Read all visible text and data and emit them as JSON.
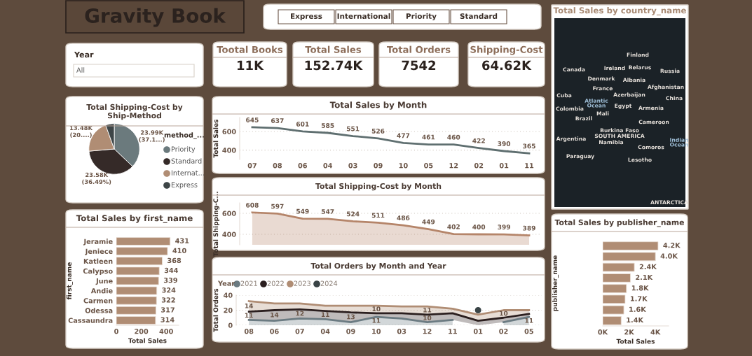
{
  "chart_data": [
    {
      "type": "other",
      "title": "Gravity Book"
    },
    {
      "type": "other",
      "annotations": [
        "Express",
        "International",
        "Priority",
        "Standard"
      ]
    },
    {
      "type": "other",
      "title": "Total Sales by country_name",
      "annotations": [
        "Finland",
        "Canada",
        "Ireland",
        "Belarus",
        "Russia",
        "Denmark",
        "Albania",
        "France",
        "Afghanistan",
        "Cuba",
        "Azerbaijan",
        "China",
        "Atlantic\nOcean",
        "Colombia",
        "Egypt",
        "Armenia",
        "Mali",
        "Brazil",
        "Cameroon",
        "Burkina Faso",
        "SOUTH AMERICA",
        "Argentina",
        "Namibia",
        "Indian\nOcean",
        "Comoros",
        "Paraguay",
        "Lesotho",
        "ANTARCTICA"
      ]
    },
    {
      "type": "other",
      "title": "Year",
      "annotations": [
        "All"
      ]
    },
    {
      "type": "other",
      "title": "Tootal Books",
      "annotations": [
        "11K"
      ]
    },
    {
      "type": "other",
      "title": "Total Sales",
      "annotations": [
        "152.74K"
      ]
    },
    {
      "type": "other",
      "title": "Total Orders",
      "annotations": [
        "7542"
      ]
    },
    {
      "type": "other",
      "title": "Shipping-Cost",
      "annotations": [
        "64.62K"
      ]
    },
    {
      "type": "pie",
      "title": "Total Shipping-Cost by\nShip-Method",
      "legend_title": "method_...",
      "legend": "right",
      "categories": [
        "Priority",
        "Standard",
        "Internat...",
        "Express"
      ],
      "values": [
        23990,
        23580,
        13480,
        3570
      ],
      "colors": [
        "#6b7a7d",
        "#352a28",
        "#b08d74",
        "#3d4547"
      ],
      "value_labels": [
        "23.99K\n(37.1...)",
        "23.58K\n(36.49%)",
        "13.48K\n(20....)",
        null
      ]
    },
    {
      "type": "line",
      "title": "Total Sales by Month",
      "ylabel": "Total Sales",
      "categories": [
        "07",
        "08",
        "06",
        "04",
        "03",
        "09",
        "10",
        "05",
        "12",
        "02",
        "01",
        "11"
      ],
      "values": [
        645,
        637,
        601,
        585,
        551,
        526,
        477,
        461,
        460,
        422,
        390,
        365
      ],
      "color": "#5f6f70",
      "data_labels": true,
      "ylim": [
        300,
        750
      ],
      "yticks": [
        400,
        600
      ],
      "grid": "y",
      "marker": "none"
    },
    {
      "type": "area",
      "title": "Total Shipping-Cost by Month",
      "ylabel": "Total Shipping-C...",
      "categories": [
        null,
        null,
        null,
        null,
        null,
        null,
        null,
        null,
        null,
        null,
        null,
        null
      ],
      "values": [
        608,
        597,
        549,
        547,
        524,
        511,
        486,
        449,
        402,
        400,
        399,
        389
      ],
      "color": "#b5856a",
      "data_labels": true,
      "ylim": [
        300,
        700
      ],
      "yticks": [
        400,
        600
      ],
      "grid": "y"
    },
    {
      "type": "area",
      "stacked": true,
      "title": "Total Orders by Month and Year",
      "ylabel": "Total Orders",
      "legend_title": "Year",
      "legend": "top left",
      "categories": [
        "08",
        "06",
        "07",
        "04",
        "09",
        "10",
        "03",
        "12",
        "11",
        "01",
        "02",
        "05"
      ],
      "series": [
        {
          "name": "2021",
          "color": "#6b7b82",
          "values": [
            7,
            6,
            9,
            8,
            4,
            11,
            9,
            4,
            7,
            null,
            4,
            11
          ],
          "value_labels": [
            null,
            null,
            null,
            null,
            null,
            "11",
            null,
            null,
            null,
            null,
            null,
            "11"
          ]
        },
        {
          "name": "2022",
          "color": "#2b1f1f",
          "values": [
            11,
            14,
            12,
            11,
            13,
            5,
            7,
            10,
            9,
            6,
            6,
            4
          ],
          "value_labels": [
            "11",
            "14",
            "12",
            "11",
            "13",
            null,
            null,
            "10",
            null,
            null,
            null,
            null
          ]
        },
        {
          "name": "2023",
          "color": "#b08d74",
          "values": [
            14,
            9,
            8,
            7,
            9,
            10,
            9,
            11,
            6,
            8,
            10,
            5
          ],
          "value_labels": [
            "14",
            null,
            null,
            null,
            null,
            "10",
            null,
            "11",
            null,
            null,
            "10",
            null
          ]
        },
        {
          "name": "2024",
          "color": "#3a4446",
          "type": "scatter",
          "values": [
            null,
            null,
            null,
            null,
            null,
            null,
            null,
            null,
            null,
            20,
            null,
            null
          ]
        }
      ],
      "ylim": [
        0,
        40
      ],
      "yticks": [
        0,
        20,
        40
      ],
      "grid": "y"
    },
    {
      "type": "bar",
      "orientation": "horizontal",
      "title": "Total Sales by first_name",
      "xlabel": "Total Sales",
      "ylabel": "first_name",
      "categories": [
        "Jeramie",
        "Jeniece",
        "Katleen",
        "Calypso",
        "June",
        "Andie",
        "Carmen",
        "Odessa",
        "Cassaundra"
      ],
      "values": [
        431,
        410,
        368,
        344,
        339,
        324,
        322,
        317,
        314
      ],
      "color": "#b08d74",
      "data_labels": true,
      "xlim": [
        0,
        500
      ],
      "xticks": [
        0,
        200,
        400
      ]
    },
    {
      "type": "bar",
      "orientation": "horizontal",
      "title": "Total Sales by publisher_name",
      "xlabel": "Total Sales",
      "ylabel": "publisher_name",
      "categories": [
        null,
        null,
        null,
        null,
        null,
        null,
        null,
        null
      ],
      "values": [
        4.2,
        4.0,
        2.4,
        2.1,
        1.8,
        1.7,
        1.6,
        1.4
      ],
      "value_labels": [
        "4.2K",
        "4.0K",
        "2.4K",
        "2.1K",
        "1.8K",
        "1.7K",
        "1.6K",
        "1.4K"
      ],
      "color": "#b08d74",
      "xlim": [
        0,
        5
      ],
      "xticks": [
        {
          "value": 0,
          "label": "0K"
        },
        {
          "value": 2,
          "label": "2K"
        },
        {
          "value": 4,
          "label": "4K"
        }
      ]
    }
  ]
}
